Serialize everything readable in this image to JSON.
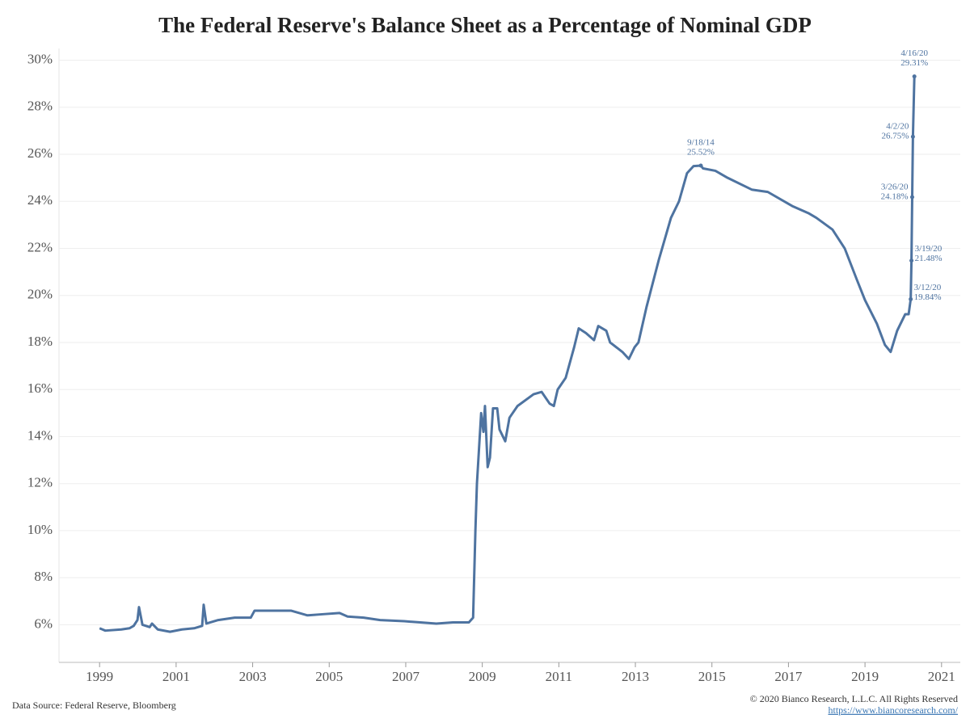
{
  "chart_data": {
    "type": "line",
    "title": "The Federal Reserve's Balance Sheet as a Percentage of Nominal GDP",
    "source": "Data Source: Federal Reserve, Bloomberg",
    "copyright": "© 2020 Bianco Research, L.L.C. All Rights Reserved",
    "url": "https://www.biancoresearch.com/",
    "xlim": [
      1997.94,
      2021.49
    ],
    "xticks": [
      1999,
      2001,
      2003,
      2005,
      2007,
      2009,
      2011,
      2013,
      2015,
      2017,
      2019,
      2021
    ],
    "ylim": [
      4.4,
      30.5
    ],
    "yticks": [
      {
        "value": 6,
        "label": "6%"
      },
      {
        "value": 8,
        "label": "8%"
      },
      {
        "value": 10,
        "label": "10%"
      },
      {
        "value": 12,
        "label": "12%"
      },
      {
        "value": 14,
        "label": "14%"
      },
      {
        "value": 16,
        "label": "16%"
      },
      {
        "value": 18,
        "label": "18%"
      },
      {
        "value": 20,
        "label": "20%"
      },
      {
        "value": 22,
        "label": "22%"
      },
      {
        "value": 24,
        "label": "24%"
      },
      {
        "value": 26,
        "label": "26%"
      },
      {
        "value": 28,
        "label": "28%"
      },
      {
        "value": 30,
        "label": "30%"
      }
    ],
    "grid": true,
    "color": "#4e73a0",
    "x": [
      1999.0,
      1999.15,
      1999.57,
      1999.78,
      1999.89,
      1999.99,
      2000.03,
      2000.12,
      2000.31,
      2000.37,
      2000.52,
      2000.84,
      2001.15,
      2001.47,
      2001.68,
      2001.72,
      2001.79,
      2002.1,
      2002.53,
      2002.95,
      2003.05,
      2003.37,
      2004.0,
      2004.43,
      2004.85,
      2005.27,
      2005.48,
      2005.9,
      2006.33,
      2006.96,
      2007.38,
      2007.8,
      2008.23,
      2008.65,
      2008.76,
      2008.82,
      2008.86,
      2008.97,
      2009.03,
      2009.07,
      2009.14,
      2009.2,
      2009.28,
      2009.39,
      2009.45,
      2009.6,
      2009.71,
      2009.92,
      2010.34,
      2010.55,
      2010.76,
      2010.87,
      2010.97,
      2011.18,
      2011.4,
      2011.52,
      2011.71,
      2011.92,
      2012.03,
      2012.24,
      2012.34,
      2012.66,
      2012.83,
      2012.98,
      2013.08,
      2013.29,
      2013.61,
      2013.93,
      2014.14,
      2014.35,
      2014.52,
      2014.71,
      2014.77,
      2015.09,
      2015.41,
      2016.04,
      2016.46,
      2017.1,
      2017.52,
      2017.73,
      2018.15,
      2018.47,
      2018.78,
      2019.0,
      2019.31,
      2019.52,
      2019.67,
      2019.84,
      2020.05,
      2020.14,
      2020.194,
      2020.214,
      2020.233,
      2020.252,
      2020.29
    ],
    "values": [
      5.85,
      5.75,
      5.8,
      5.85,
      5.95,
      6.2,
      6.75,
      6.0,
      5.9,
      6.05,
      5.8,
      5.7,
      5.8,
      5.85,
      5.95,
      6.85,
      6.05,
      6.2,
      6.3,
      6.3,
      6.6,
      6.6,
      6.6,
      6.4,
      6.45,
      6.5,
      6.35,
      6.3,
      6.2,
      6.15,
      6.1,
      6.05,
      6.1,
      6.1,
      6.3,
      10,
      12,
      15,
      14.2,
      15.3,
      12.7,
      13.1,
      15.2,
      15.2,
      14.3,
      13.8,
      14.8,
      15.3,
      15.8,
      15.9,
      15.4,
      15.3,
      16.0,
      16.5,
      17.8,
      18.6,
      18.4,
      18.1,
      18.7,
      18.5,
      18.0,
      17.6,
      17.3,
      17.8,
      18.0,
      19.5,
      21.5,
      23.3,
      24.0,
      25.2,
      25.5,
      25.52,
      25.4,
      25.3,
      25.0,
      24.5,
      24.4,
      23.8,
      23.5,
      23.3,
      22.8,
      22.0,
      20.7,
      19.8,
      18.8,
      17.9,
      17.6,
      18.5,
      19.2,
      19.2,
      19.84,
      21.48,
      24.18,
      26.75,
      29.31
    ],
    "annotations": [
      {
        "date": "9/18/14",
        "x": 2014.71,
        "value": 25.52,
        "value_label": "25.52%"
      },
      {
        "date": "3/12/20",
        "x": 2020.194,
        "value": 19.84,
        "value_label": "19.84%"
      },
      {
        "date": "3/19/20",
        "x": 2020.214,
        "value": 21.48,
        "value_label": "21.48%"
      },
      {
        "date": "3/26/20",
        "x": 2020.233,
        "value": 24.18,
        "value_label": "24.18%"
      },
      {
        "date": "4/2/20",
        "x": 2020.252,
        "value": 26.75,
        "value_label": "26.75%"
      },
      {
        "date": "4/16/20",
        "x": 2020.29,
        "value": 29.31,
        "value_label": "29.31%"
      }
    ]
  }
}
